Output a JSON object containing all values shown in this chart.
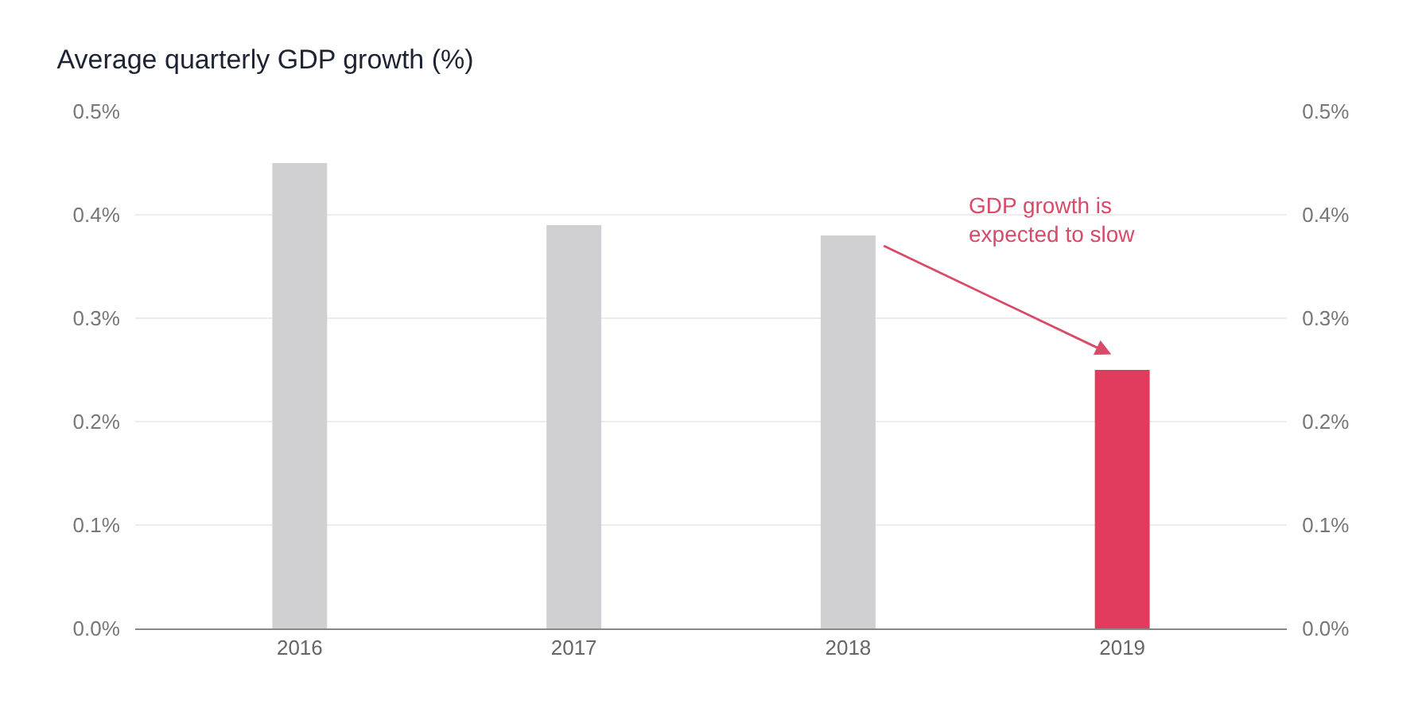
{
  "chart_data": {
    "type": "bar",
    "title": "Average quarterly GDP growth (%)",
    "categories": [
      "2016",
      "2017",
      "2018",
      "2019"
    ],
    "values": [
      0.45,
      0.39,
      0.38,
      0.25
    ],
    "colors": [
      "#d0d0d2",
      "#d0d0d2",
      "#d0d0d2",
      "#e13b5d"
    ],
    "ylim": [
      0,
      0.5
    ],
    "yticks": [
      {
        "value": 0,
        "label": "0.0%"
      },
      {
        "value": 0.1,
        "label": "0.1%"
      },
      {
        "value": 0.2,
        "label": "0.2%"
      },
      {
        "value": 0.3,
        "label": "0.3%"
      },
      {
        "value": 0.4,
        "label": "0.4%"
      },
      {
        "value": 0.5,
        "label": "0.5%"
      }
    ],
    "y2lim": [
      0,
      0.5
    ],
    "y2ticks": [
      {
        "value": 0,
        "label": "0.0%"
      },
      {
        "value": 0.1,
        "label": "0.1%"
      },
      {
        "value": 0.2,
        "label": "0.2%"
      },
      {
        "value": 0.3,
        "label": "0.3%"
      },
      {
        "value": 0.4,
        "label": "0.4%"
      },
      {
        "value": 0.5,
        "label": "0.5%"
      }
    ],
    "annotations": [
      "GDP growth is\nexpected to slow"
    ],
    "grid": "y",
    "legend": false
  }
}
